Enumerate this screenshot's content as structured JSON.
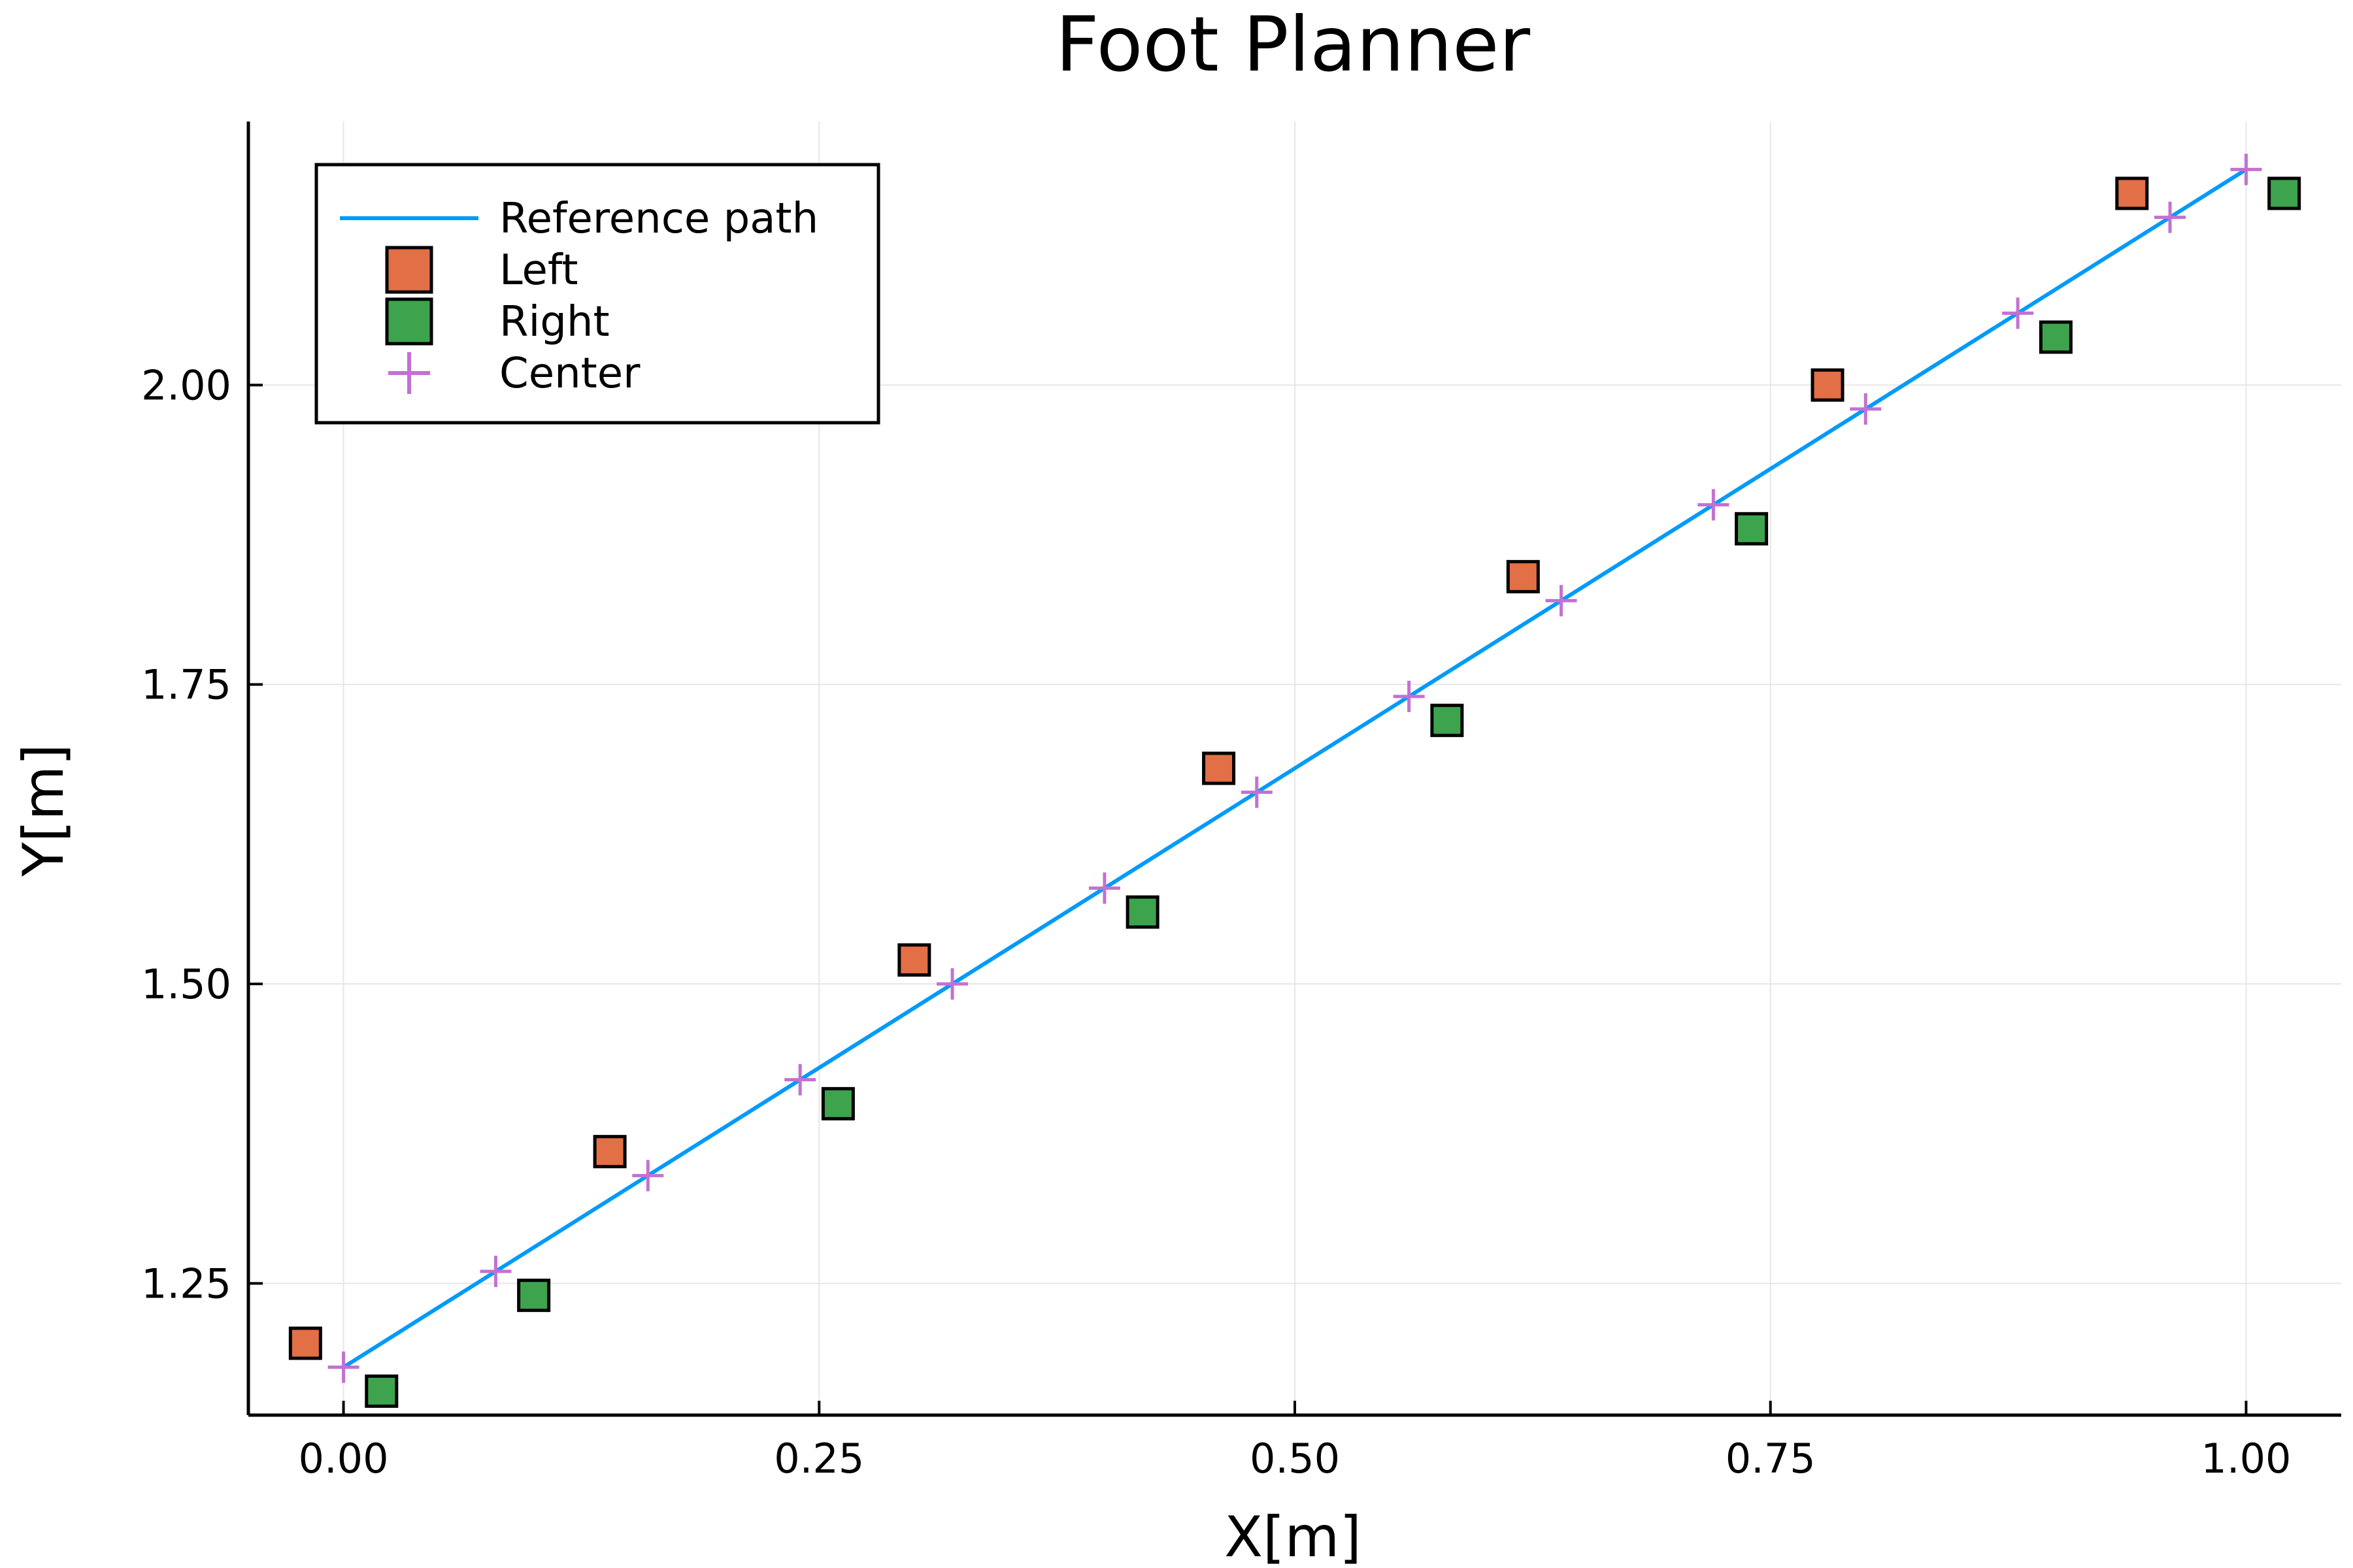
{
  "chart_data": {
    "type": "scatter",
    "title": "Foot Planner",
    "xlabel": "X[m]",
    "ylabel": "Y[m]",
    "xlim": [
      -0.05,
      1.05
    ],
    "ylim": [
      1.14,
      2.22
    ],
    "xticks": [
      0.0,
      0.25,
      0.5,
      0.75,
      1.0
    ],
    "xtick_labels": [
      "0.00",
      "0.25",
      "0.50",
      "0.75",
      "1.00"
    ],
    "yticks": [
      1.25,
      1.5,
      1.75,
      2.0
    ],
    "ytick_labels": [
      "1.25",
      "1.50",
      "1.75",
      "2.00"
    ],
    "grid": true,
    "legend_position": "top-left",
    "series": [
      {
        "name": "Reference path",
        "kind": "line",
        "color": "#009AFA",
        "x": [
          0.0,
          1.0
        ],
        "y": [
          1.18,
          2.18
        ]
      },
      {
        "name": "Left",
        "kind": "square",
        "color": "#E26F46",
        "x": [
          -0.02,
          0.14,
          0.3,
          0.46,
          0.62,
          0.78,
          0.94
        ],
        "y": [
          1.2,
          1.36,
          1.52,
          1.68,
          1.84,
          2.0,
          2.16
        ]
      },
      {
        "name": "Right",
        "kind": "square",
        "color": "#3DA44D",
        "x": [
          0.02,
          0.1,
          0.26,
          0.42,
          0.58,
          0.74,
          0.9,
          1.02
        ],
        "y": [
          1.16,
          1.24,
          1.4,
          1.56,
          1.72,
          1.88,
          2.04,
          2.16
        ]
      },
      {
        "name": "Center",
        "kind": "cross",
        "color": "#C271D2",
        "x": [
          0.0,
          0.08,
          0.16,
          0.24,
          0.32,
          0.4,
          0.48,
          0.56,
          0.64,
          0.72,
          0.8,
          0.88,
          0.96,
          1.0
        ],
        "y": [
          1.18,
          1.26,
          1.34,
          1.42,
          1.5,
          1.58,
          1.66,
          1.74,
          1.82,
          1.9,
          1.98,
          2.06,
          2.14,
          2.18
        ]
      }
    ]
  }
}
